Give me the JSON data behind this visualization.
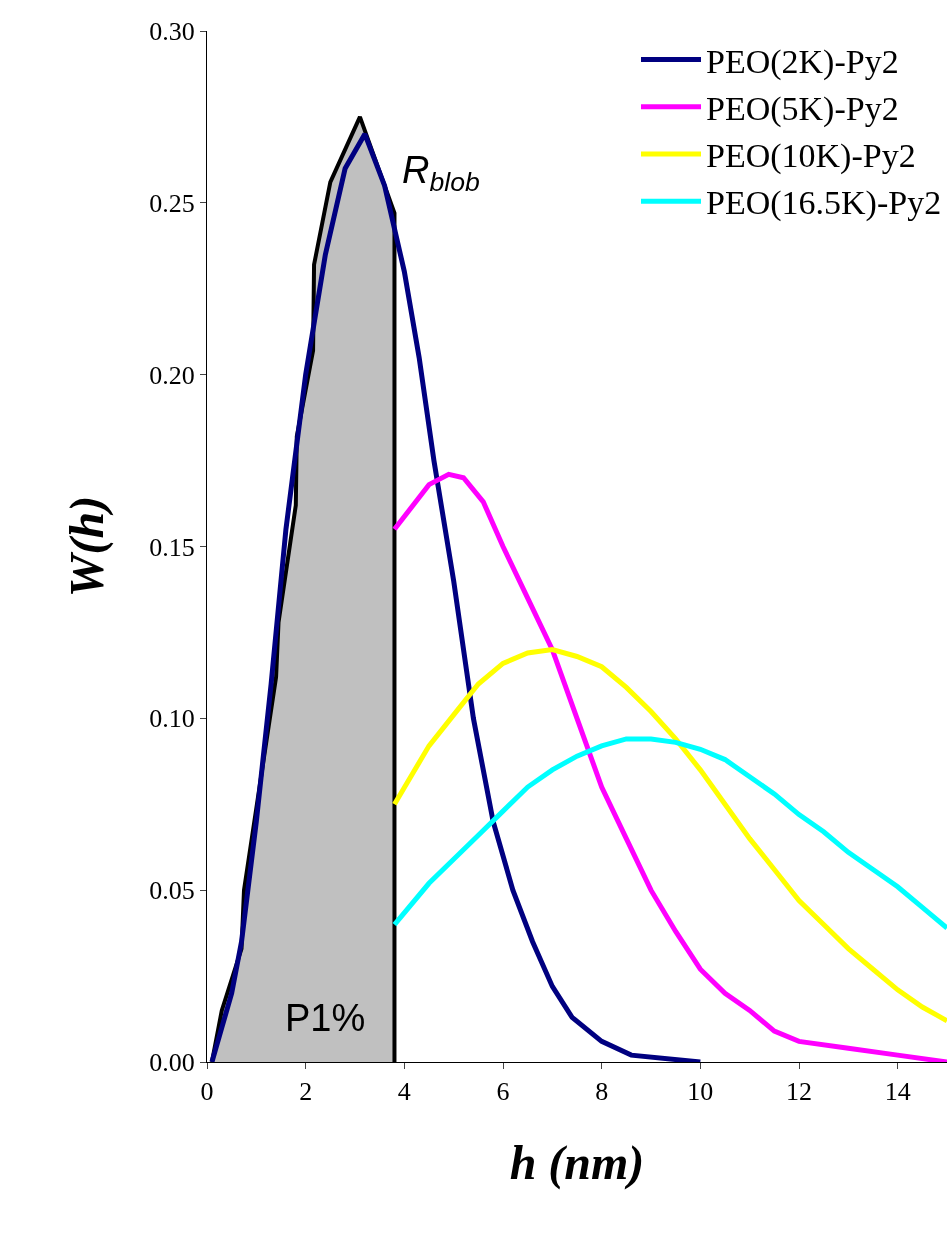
{
  "chart_data": {
    "type": "line",
    "xlabel": "h (nm)",
    "ylabel": "W(h)",
    "xlim": [
      0,
      15
    ],
    "xticks": [
      0,
      2,
      4,
      6,
      8,
      10,
      12,
      14
    ],
    "ylim": [
      0,
      0.3
    ],
    "yticks": [
      {
        "value": 0,
        "label": "0.00"
      },
      {
        "value": 0.05,
        "label": "0.05"
      },
      {
        "value": 0.1,
        "label": "0.10"
      },
      {
        "value": 0.15,
        "label": "0.15"
      },
      {
        "value": 0.2,
        "label": "0.20"
      },
      {
        "value": 0.25,
        "label": "0.25"
      },
      {
        "value": 0.3,
        "label": "0.30"
      }
    ],
    "grid": false,
    "legend": "top right",
    "marker": "none",
    "line_style": "solid",
    "series": [
      {
        "type": "area",
        "color": "#c0c0c0",
        "x": [
          0.1,
          0.3,
          0.7,
          0.75,
          1.4,
          1.45,
          1.8,
          1.82,
          2.15,
          2.17,
          2.5,
          3.1,
          3.8,
          3.8
        ],
        "values": [
          0,
          0.015,
          0.033,
          0.05,
          0.112,
          0.128,
          0.162,
          0.182,
          0.207,
          0.232,
          0.256,
          0.275,
          0.247,
          0
        ]
      },
      {
        "name": "PEO(2K)-Py2",
        "color": "#000080",
        "x": [
          0.1,
          0.3,
          0.5,
          0.7,
          1.0,
          1.3,
          1.6,
          2.0,
          2.4,
          2.8,
          3.2,
          3.6,
          4.0,
          4.3,
          4.6,
          5.0,
          5.4,
          5.8,
          6.2,
          6.6,
          7.0,
          7.4,
          8.0,
          8.6,
          10.0
        ],
        "values": [
          0,
          0.01,
          0.02,
          0.035,
          0.07,
          0.11,
          0.155,
          0.2,
          0.235,
          0.26,
          0.27,
          0.255,
          0.23,
          0.205,
          0.175,
          0.14,
          0.1,
          0.07,
          0.05,
          0.035,
          0.022,
          0.013,
          0.006,
          0.002,
          0.0
        ]
      },
      {
        "name": "PEO(5K)-Py2",
        "color": "#ff00ff",
        "x": [
          3.8,
          4.5,
          4.9,
          5.2,
          5.6,
          6.0,
          6.5,
          7.0,
          7.5,
          8.0,
          8.5,
          9.0,
          9.5,
          10.0,
          10.5,
          11.0,
          11.5,
          12.0,
          13.0,
          14.0,
          15.0
        ],
        "values": [
          0.155,
          0.168,
          0.171,
          0.17,
          0.163,
          0.15,
          0.135,
          0.12,
          0.1,
          0.08,
          0.065,
          0.05,
          0.038,
          0.027,
          0.02,
          0.015,
          0.009,
          0.006,
          0.004,
          0.002,
          0.0
        ]
      },
      {
        "name": "PEO(10K)-Py2",
        "color": "#ffff00",
        "x": [
          3.8,
          4.5,
          5.0,
          5.5,
          6.0,
          6.5,
          7.0,
          7.5,
          8.0,
          8.5,
          9.0,
          9.5,
          10.0,
          10.5,
          11.0,
          11.5,
          12.0,
          12.5,
          13.0,
          13.5,
          14.0,
          14.5,
          15.0
        ],
        "values": [
          0.075,
          0.092,
          0.101,
          0.11,
          0.116,
          0.119,
          0.12,
          0.118,
          0.115,
          0.109,
          0.102,
          0.094,
          0.085,
          0.075,
          0.065,
          0.056,
          0.047,
          0.04,
          0.033,
          0.027,
          0.021,
          0.016,
          0.012
        ]
      },
      {
        "name": "PEO(16.5K)-Py2",
        "color": "#00ffff",
        "x": [
          3.8,
          4.5,
          5.0,
          5.5,
          6.0,
          6.5,
          7.0,
          7.5,
          8.0,
          8.5,
          9.0,
          9.5,
          10.0,
          10.5,
          11.0,
          11.5,
          12.0,
          12.5,
          13.0,
          13.5,
          14.0,
          14.5,
          15.0
        ],
        "values": [
          0.04,
          0.052,
          0.059,
          0.066,
          0.073,
          0.08,
          0.085,
          0.089,
          0.092,
          0.094,
          0.094,
          0.093,
          0.091,
          0.088,
          0.083,
          0.078,
          0.072,
          0.067,
          0.061,
          0.056,
          0.051,
          0.045,
          0.039
        ]
      }
    ],
    "annotations": [
      {
        "text": "R$_{blob}$",
        "x": 3.8,
        "y": 0.25
      },
      "P1%"
    ]
  }
}
